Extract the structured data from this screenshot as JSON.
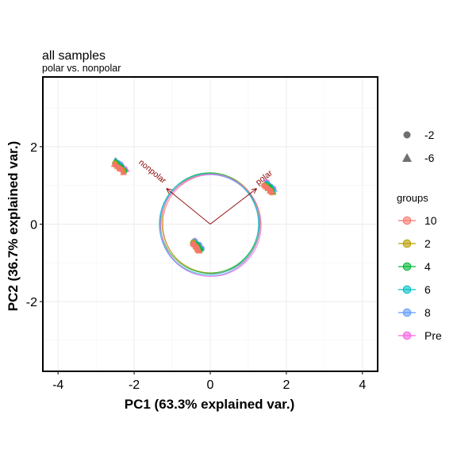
{
  "chart_data": {
    "type": "scatter",
    "title": "all samples",
    "subtitle": "polar vs. nonpolar",
    "xlabel": "PC1 (63.3% explained var.)",
    "ylabel": "PC2 (36.7% explained var.)",
    "xlim": [
      -4.4,
      4.4
    ],
    "ylim": [
      -3.8,
      3.8
    ],
    "x_ticks": [
      {
        "value": -4,
        "label": "-4"
      },
      {
        "value": -2,
        "label": "-2"
      },
      {
        "value": 0,
        "label": "0"
      },
      {
        "value": 2,
        "label": "2"
      },
      {
        "value": 4,
        "label": "4"
      }
    ],
    "y_ticks": [
      {
        "value": -2,
        "label": "-2"
      },
      {
        "value": 0,
        "label": "0"
      },
      {
        "value": 2,
        "label": "2"
      }
    ],
    "grid": true,
    "legend_position": "right",
    "shape_legend": {
      "title": "",
      "items": [
        {
          "label": "-2",
          "shape": "circle"
        },
        {
          "label": "-6",
          "shape": "triangle"
        }
      ]
    },
    "color_legend": {
      "title": "groups",
      "items": [
        {
          "label": "10",
          "color": "#f8766d"
        },
        {
          "label": "2",
          "color": "#b79f00"
        },
        {
          "label": "4",
          "color": "#00ba38"
        },
        {
          "label": "6",
          "color": "#00bfc4"
        },
        {
          "label": "8",
          "color": "#619cff"
        },
        {
          "label": "Pre",
          "color": "#f564e3"
        }
      ]
    },
    "arrows": [
      {
        "label": "nonpolar",
        "x": -1.15,
        "y": 0.92
      },
      {
        "label": "polar",
        "x": 1.22,
        "y": 0.92
      }
    ],
    "circle_radius": 1.3,
    "clusters": [
      {
        "cx": -2.38,
        "cy": 1.5,
        "dx": 0.09,
        "dy": 0.12
      },
      {
        "cx": -0.35,
        "cy": -0.55,
        "dx": 0.07,
        "dy": 0.1
      },
      {
        "cx": 1.55,
        "cy": 0.95,
        "dx": 0.08,
        "dy": 0.1
      }
    ]
  }
}
